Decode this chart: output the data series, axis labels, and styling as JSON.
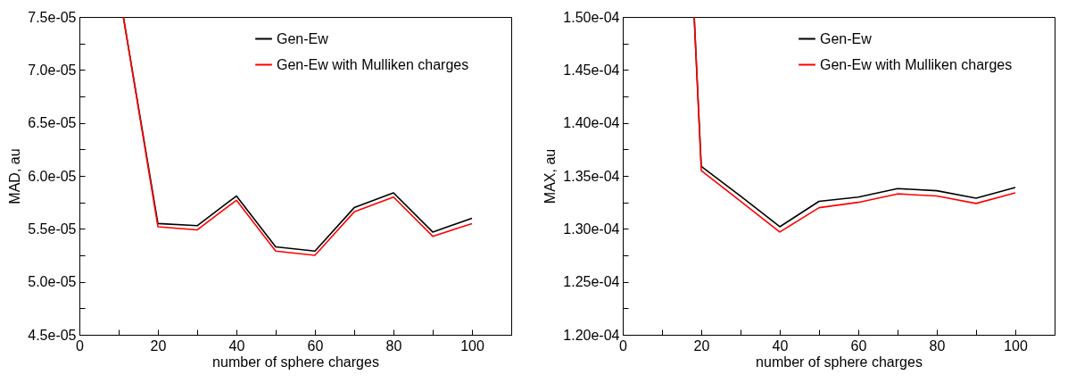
{
  "chart_data": [
    {
      "type": "line",
      "xlabel": "number of sphere charges",
      "ylabel": "MAD, au",
      "legend": "top right",
      "grid": false,
      "marker": "none",
      "line_style": "solid",
      "xlim": [
        0,
        110
      ],
      "xticks": [
        0,
        {
          "value": 10,
          "label": null
        },
        20,
        {
          "value": 30,
          "label": null
        },
        40,
        {
          "value": 50,
          "label": null
        },
        60,
        {
          "value": 70,
          "label": null
        },
        80,
        {
          "value": 90,
          "label": null
        },
        100,
        {
          "value": 110,
          "label": null
        }
      ],
      "ylim": [
        4.5e-05,
        7.5e-05
      ],
      "yticks": [
        {
          "value": 4.5e-05,
          "label": "4.5e-05"
        },
        {
          "value": 4.75e-05,
          "label": null
        },
        {
          "value": 5e-05,
          "label": "5.0e-05"
        },
        {
          "value": 5.25e-05,
          "label": null
        },
        {
          "value": 5.5e-05,
          "label": "5.5e-05"
        },
        {
          "value": 5.75e-05,
          "label": null
        },
        {
          "value": 6e-05,
          "label": "6.0e-05"
        },
        {
          "value": 6.25e-05,
          "label": null
        },
        {
          "value": 6.5e-05,
          "label": "6.5e-05"
        },
        {
          "value": 6.75e-05,
          "label": null
        },
        {
          "value": 7e-05,
          "label": "7.0e-05"
        },
        {
          "value": 7.25e-05,
          "label": null
        },
        {
          "value": 7.5e-05,
          "label": "7.5e-05"
        }
      ],
      "x": [
        11.2,
        20,
        30,
        40,
        50,
        60,
        70,
        80,
        90,
        100
      ],
      "series": [
        {
          "name": "Gen-Ew",
          "color": "#000000",
          "values": [
            7.5e-05,
            5.55e-05,
            5.53e-05,
            5.81e-05,
            5.33e-05,
            5.29e-05,
            5.7e-05,
            5.84e-05,
            5.47e-05,
            5.6e-05
          ]
        },
        {
          "name": "Gen-Ew with Mulliken charges",
          "color": "#ff0000",
          "values": [
            7.5e-05,
            5.52e-05,
            5.49e-05,
            5.77e-05,
            5.29e-05,
            5.25e-05,
            5.66e-05,
            5.8e-05,
            5.43e-05,
            5.55e-05
          ]
        }
      ]
    },
    {
      "type": "line",
      "xlabel": "number of sphere charges",
      "ylabel": "MAX, au",
      "legend": "top right",
      "grid": false,
      "marker": "none",
      "line_style": "solid",
      "xlim": [
        0,
        110
      ],
      "xticks": [
        0,
        {
          "value": 10,
          "label": null
        },
        20,
        {
          "value": 30,
          "label": null
        },
        40,
        {
          "value": 50,
          "label": null
        },
        60,
        {
          "value": 70,
          "label": null
        },
        80,
        {
          "value": 90,
          "label": null
        },
        100,
        {
          "value": 110,
          "label": null
        }
      ],
      "ylim": [
        0.00012,
        0.00015
      ],
      "yticks": [
        {
          "value": 0.00012,
          "label": "1.20e-04"
        },
        {
          "value": 0.0001225,
          "label": null
        },
        {
          "value": 0.000125,
          "label": "1.25e-04"
        },
        {
          "value": 0.0001275,
          "label": null
        },
        {
          "value": 0.00013,
          "label": "1.30e-04"
        },
        {
          "value": 0.0001325,
          "label": null
        },
        {
          "value": 0.000135,
          "label": "1.35e-04"
        },
        {
          "value": 0.0001375,
          "label": null
        },
        {
          "value": 0.00014,
          "label": "1.40e-04"
        },
        {
          "value": 0.0001425,
          "label": null
        },
        {
          "value": 0.000145,
          "label": "1.45e-04"
        },
        {
          "value": 0.0001475,
          "label": null
        },
        {
          "value": 0.00015,
          "label": "1.50e-04"
        }
      ],
      "x": [
        18.2,
        20,
        30,
        40,
        50,
        60,
        70,
        80,
        90,
        100
      ],
      "series": [
        {
          "name": "Gen-Ew",
          "color": "#000000",
          "values": [
            0.00015,
            0.0001359,
            0.0001331,
            0.0001302,
            0.0001326,
            0.000133,
            0.0001338,
            0.0001336,
            0.0001329,
            0.0001339
          ]
        },
        {
          "name": "Gen-Ew with Mulliken charges",
          "color": "#ff0000",
          "values": [
            0.00015,
            0.0001355,
            0.0001326,
            0.0001297,
            0.000132,
            0.0001325,
            0.0001333,
            0.0001331,
            0.0001324,
            0.0001334
          ]
        }
      ]
    }
  ]
}
